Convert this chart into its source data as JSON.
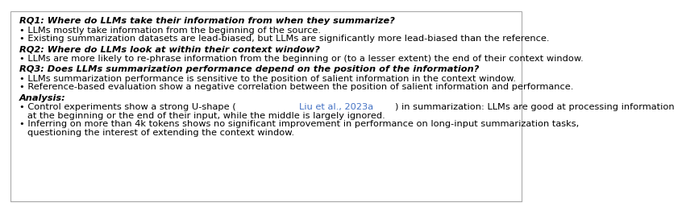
{
  "background_color": "#ffffff",
  "border_color": "#aaaaaa",
  "sections": [
    {
      "header": "RQ1: Where do LLMs take their information from when they summarize?",
      "bullets": [
        "LLMs mostly take information from the beginning of the source.",
        "Existing summarization datasets are lead-biased, but LLMs are significantly more lead-biased than the reference."
      ]
    },
    {
      "header": "RQ2: Where do LLMs look at within their context window?",
      "bullets": [
        "LLMs are more likely to re-phrase information from the beginning or (to a lesser extent) the end of their context window."
      ]
    },
    {
      "header": "RQ3: Does LLMs summarization performance depend on the position of the information?",
      "bullets": [
        "LLMs summarization performance is sensitive to the position of salient information in the context window.",
        "Reference-based evaluation show a negative correlation between the position of salient information and performance."
      ]
    },
    {
      "header": "Analysis:",
      "bullets": [
        {
          "parts": [
            {
              "text": "• Control experiments show a strong U-shape (",
              "color": "#000000"
            },
            {
              "text": "Liu et al., 2023a",
              "color": "#4472c4"
            },
            {
              "text": ") in summarization: LLMs are good at processing information",
              "color": "#000000"
            }
          ]
        },
        {
          "parts": [
            {
              "text": "at the beginning or the end of their input, while the middle is largely ignored.",
              "color": "#000000",
              "indent": true
            }
          ]
        },
        {
          "parts": [
            {
              "text": "• Inferring on more than 4k tokens shows no significant improvement in performance on long-input summarization tasks,",
              "color": "#000000"
            }
          ]
        },
        {
          "parts": [
            {
              "text": "questioning the interest of extending the context window.",
              "color": "#000000",
              "indent": true
            }
          ]
        }
      ]
    }
  ],
  "font_size": 8.2,
  "text_color": "#000000",
  "bullet_char": "•"
}
